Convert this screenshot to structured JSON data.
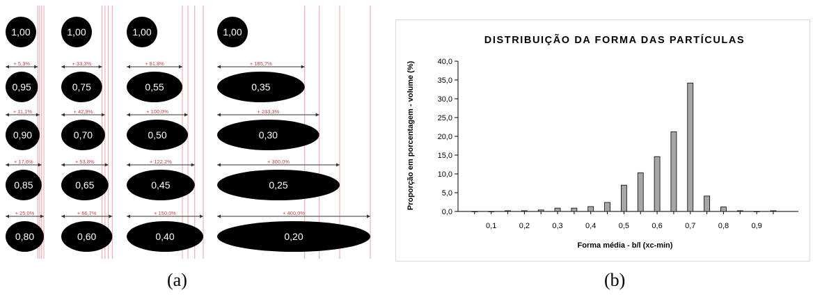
{
  "panel_a": {
    "columns": [
      {
        "ellipses": [
          {
            "label": "1,00",
            "aspect": 1.0
          },
          {
            "label": "0,95",
            "aspect": 0.95,
            "increase": "+ 5,3%"
          },
          {
            "label": "0,90",
            "aspect": 0.9,
            "increase": "+ 11,1%"
          },
          {
            "label": "0,85",
            "aspect": 0.85,
            "increase": "+ 17,6%"
          },
          {
            "label": "0,80",
            "aspect": 0.8,
            "increase": "+ 25,0%"
          }
        ]
      },
      {
        "ellipses": [
          {
            "label": "1,00",
            "aspect": 1.0
          },
          {
            "label": "0,75",
            "aspect": 0.75,
            "increase": "+ 33,3%"
          },
          {
            "label": "0,70",
            "aspect": 0.7,
            "increase": "+ 42,9%"
          },
          {
            "label": "0,65",
            "aspect": 0.65,
            "increase": "+ 53,8%"
          },
          {
            "label": "0,60",
            "aspect": 0.6,
            "increase": "+ 66,7%"
          }
        ]
      },
      {
        "ellipses": [
          {
            "label": "1,00",
            "aspect": 1.0
          },
          {
            "label": "0,55",
            "aspect": 0.55,
            "increase": "+ 81,8%"
          },
          {
            "label": "0,50",
            "aspect": 0.5,
            "increase": "+ 100,0%"
          },
          {
            "label": "0,45",
            "aspect": 0.45,
            "increase": "+ 122,2%"
          },
          {
            "label": "0,40",
            "aspect": 0.4,
            "increase": "+ 150,0%"
          }
        ]
      },
      {
        "ellipses": [
          {
            "label": "1,00",
            "aspect": 1.0
          },
          {
            "label": "0,35",
            "aspect": 0.35,
            "increase": "+ 185,7%"
          },
          {
            "label": "0,30",
            "aspect": 0.3,
            "increase": "+ 233,3%"
          },
          {
            "label": "0,25",
            "aspect": 0.25,
            "increase": "+ 300,0%"
          },
          {
            "label": "0,20",
            "aspect": 0.2,
            "increase": "+ 400,0%"
          }
        ]
      }
    ],
    "colors": {
      "ellipse": "#000000",
      "ellipse_text": "#ffffff",
      "guide_line": "#e8a0a0",
      "increase_text": "#d04040",
      "arrow": "#333333"
    }
  },
  "chart_data": {
    "type": "bar",
    "title": "DISTRIBUIÇÃO DA FORMA DAS PARTÍCULAS",
    "xlabel": "Forma média -  b/l (xc-min)",
    "ylabel": "Proporção em porcentagem - volume (%)",
    "ylim": [
      0,
      40
    ],
    "yticks": [
      "0,0",
      "5,0",
      "10,0",
      "15,0",
      "20,0",
      "25,0",
      "30,0",
      "35,0",
      "40,0"
    ],
    "xtick_labels": [
      "0,1",
      "0,2",
      "0,3",
      "0,4",
      "0,5",
      "0,6",
      "0,7",
      "0,8",
      "0,9"
    ],
    "categories": [
      0.05,
      0.1,
      0.15,
      0.2,
      0.25,
      0.3,
      0.35,
      0.4,
      0.45,
      0.5,
      0.55,
      0.6,
      0.65,
      0.7,
      0.75,
      0.8,
      0.85,
      0.9,
      0.95
    ],
    "values": [
      0.0,
      0.0,
      0.2,
      0.2,
      0.4,
      0.9,
      0.9,
      1.3,
      2.4,
      7.0,
      10.3,
      14.6,
      21.2,
      34.2,
      4.1,
      1.2,
      0.2,
      0.0,
      0.2
    ],
    "grid": false,
    "bar_color": "#a6a6a6",
    "bar_edge_color": "#000000"
  },
  "captions": {
    "a": "(a)",
    "b": "(b)"
  }
}
